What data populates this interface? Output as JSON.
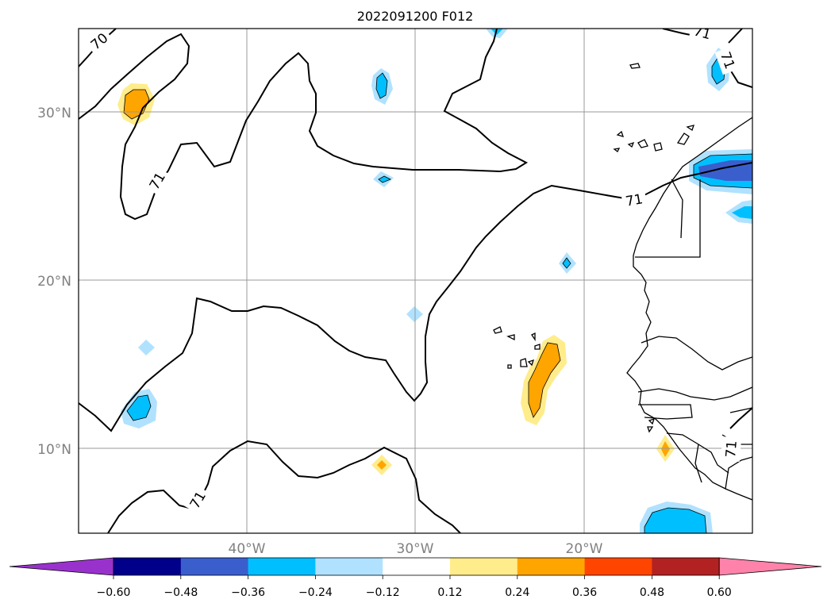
{
  "title": "2022091200 F012",
  "map": {
    "lat_labels": [
      "30°N",
      "20°N",
      "10°N"
    ],
    "lon_labels": [
      "40°W",
      "30°W",
      "20°W"
    ],
    "contour_labels": [
      "70",
      "71",
      "71",
      "71",
      "71",
      "71",
      "71"
    ],
    "gridlines": true
  },
  "colorbar": {
    "colors": [
      "#9932cc",
      "#00008b",
      "#3a5fcd",
      "#00bfff",
      "#b0e2ff",
      "#ffffff",
      "#ffec8b",
      "#ffa500",
      "#ff4500",
      "#b22222",
      "#ff82ab"
    ],
    "tick_labels": [
      "−0.60",
      "−0.48",
      "−0.36",
      "−0.24",
      "−0.12",
      "0.12",
      "0.24",
      "0.36",
      "0.48",
      "0.60"
    ],
    "extend": "both"
  }
}
